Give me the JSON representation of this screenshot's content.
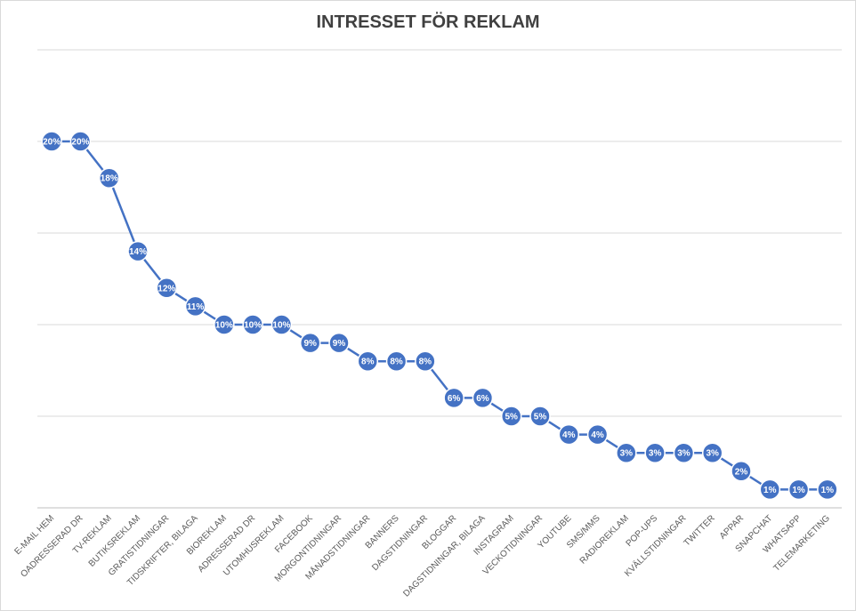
{
  "chart_data": {
    "type": "line",
    "title": "INTRESSET FÖR REKLAM",
    "xlabel": "",
    "ylabel": "",
    "ylim": [
      0,
      25
    ],
    "grid": true,
    "legend": "none",
    "categories": [
      "E-MAIL HEM",
      "OADRESSERAD DR",
      "TV-REKLAM",
      "BUTIKSREKLAM",
      "GRATISTIDNINGAR",
      "TIDSKRIFTER, BILAGA",
      "BIOREKLAM",
      "ADRESSERAD DR",
      "UTOMHUSREKLAM",
      "FACEBOOK",
      "MORGONTIDNINGAR",
      "MÅNADSTIDNINGAR",
      "BANNERS",
      "DAGSTIDNINGAR",
      "BLOGGAR",
      "DAGSTIDNINGAR, BILAGA",
      "INSTAGRAM",
      "VECKOTIDNINGAR",
      "YOUTUBE",
      "SMS/MMS",
      "RADIOREKLAM",
      "POP-UPS",
      "KVÄLLSTIDNINGAR",
      "TWITTER",
      "APPAR",
      "SNAPCHAT",
      "WHATSAPP",
      "TELEMARKETING"
    ],
    "values": [
      20,
      20,
      18,
      14,
      12,
      11,
      10,
      10,
      10,
      9,
      9,
      8,
      8,
      8,
      6,
      6,
      5,
      5,
      4,
      4,
      3,
      3,
      3,
      3,
      2,
      1,
      1,
      1
    ],
    "data_labels": [
      "20%",
      "20%",
      "18%",
      "14%",
      "12%",
      "11%",
      "10%",
      "10%",
      "10%",
      "9%",
      "9%",
      "8%",
      "8%",
      "8%",
      "6%",
      "6%",
      "5%",
      "5%",
      "4%",
      "4%",
      "3%",
      "3%",
      "3%",
      "3%",
      "2%",
      "1%",
      "1%",
      "1%"
    ],
    "colors": {
      "series": "#4472c4",
      "grid": "#d9d9d9",
      "title": "#404040"
    }
  }
}
